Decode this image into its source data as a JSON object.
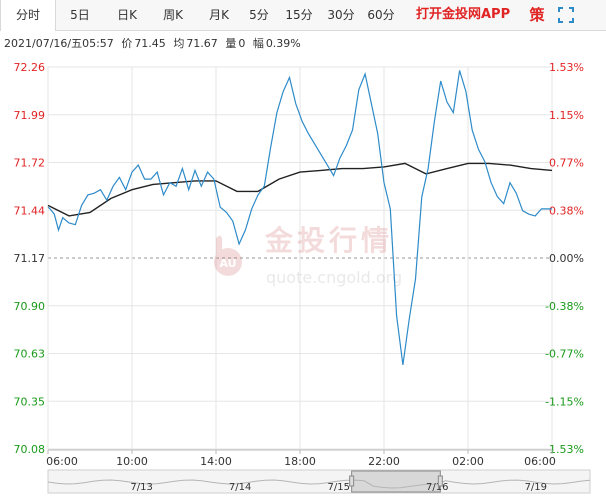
{
  "tabs": [
    {
      "label": "分时",
      "active": true
    },
    {
      "label": "5日"
    },
    {
      "label": "日K"
    },
    {
      "label": "周K"
    },
    {
      "label": "月K"
    },
    {
      "label": "5分"
    },
    {
      "label": "15分"
    },
    {
      "label": "30分"
    },
    {
      "label": "60分"
    }
  ],
  "app_link": "打开金投网APP",
  "icons": {
    "side": "策",
    "fullscreen": "fullscreen-icon"
  },
  "info": {
    "datetime": "2021/07/16/五05:57",
    "price_label": "价",
    "price": "71.45",
    "avg_label": "均",
    "avg": "71.67",
    "vol_label": "量",
    "vol": "0",
    "change_label": "幅",
    "change": "0.39%"
  },
  "watermark": {
    "cn": "金投行情",
    "url": "quote.cngold.org",
    "badge": "AU"
  },
  "colors": {
    "up": "#e02424",
    "down": "#1a9a1a",
    "price_line": "#2e8bc9",
    "avg_line": "#222222"
  },
  "navigator": {
    "dates": [
      "7/13",
      "7/14",
      "7/15",
      "7/16",
      "7/19"
    ],
    "selected": "7/16"
  },
  "chart_data": {
    "type": "line",
    "title": "",
    "xlabel": "",
    "ylabel": "",
    "x_ticks": [
      "06:00",
      "10:00",
      "14:00",
      "18:00",
      "22:00",
      "02:00",
      "06:00"
    ],
    "y_ticks": [
      "72.26",
      "71.99",
      "71.72",
      "71.44",
      "71.17",
      "70.90",
      "70.63",
      "70.35",
      "70.08"
    ],
    "pct_ticks": [
      "1.53%",
      "1.15%",
      "0.77%",
      "0.38%",
      "0.00%",
      "-0.38%",
      "-0.77%",
      "-1.15%",
      "-1.53%"
    ],
    "ylim": [
      70.08,
      72.26
    ],
    "prev_close": 71.17,
    "grid": true,
    "series": [
      {
        "name": "价",
        "hours": [
          0,
          0.1,
          0.3,
          0.5,
          0.7,
          1.0,
          1.3,
          1.6,
          1.9,
          2.2,
          2.5,
          2.8,
          3.1,
          3.4,
          3.7,
          4.0,
          4.3,
          4.6,
          4.9,
          5.2,
          5.5,
          5.8,
          6.1,
          6.4,
          6.7,
          7.0,
          7.3,
          7.6,
          7.9,
          8.2,
          8.5,
          8.8,
          9.1,
          9.4,
          9.7,
          10.0,
          10.3,
          10.6,
          10.9,
          11.2,
          11.5,
          11.8,
          12.1,
          12.4,
          12.7,
          13.0,
          13.3,
          13.6,
          13.9,
          14.2,
          14.5,
          14.8,
          15.1,
          15.4,
          15.7,
          16.0,
          16.3,
          16.6,
          16.9,
          17.2,
          17.5,
          17.8,
          18.1,
          18.4,
          18.7,
          19.0,
          19.3,
          19.6,
          19.9,
          20.2,
          20.5,
          20.8,
          21.1,
          21.4,
          21.7,
          22.0,
          22.3,
          22.6,
          22.9,
          23.2,
          23.5,
          23.8,
          24.0
        ],
        "values": [
          71.46,
          71.45,
          71.42,
          71.33,
          71.4,
          71.37,
          71.36,
          71.47,
          71.53,
          71.54,
          71.56,
          71.5,
          71.58,
          71.63,
          71.56,
          71.66,
          71.7,
          71.62,
          71.62,
          71.66,
          71.53,
          71.6,
          71.58,
          71.68,
          71.56,
          71.67,
          71.58,
          71.66,
          71.62,
          71.46,
          71.43,
          71.38,
          71.25,
          71.33,
          71.45,
          71.53,
          71.58,
          71.8,
          72.0,
          72.12,
          72.2,
          72.05,
          71.95,
          71.88,
          71.82,
          71.76,
          71.7,
          71.64,
          71.74,
          71.81,
          71.9,
          72.13,
          72.22,
          72.05,
          71.88,
          71.6,
          71.45,
          70.84,
          70.56,
          70.82,
          71.05,
          71.52,
          71.68,
          71.95,
          72.18,
          72.06,
          72.0,
          72.24,
          72.12,
          71.9,
          71.79,
          71.72,
          71.6,
          71.52,
          71.48,
          71.6,
          71.54,
          71.44,
          71.42,
          71.41,
          71.45,
          71.45,
          71.45
        ]
      },
      {
        "name": "均",
        "hours": [
          0,
          1,
          2,
          3,
          4,
          5,
          6,
          7,
          8,
          9,
          10,
          11,
          12,
          13,
          14,
          15,
          16,
          17,
          18,
          19,
          20,
          21,
          22,
          23,
          24
        ],
        "values": [
          71.47,
          71.41,
          71.43,
          71.51,
          71.56,
          71.59,
          71.6,
          71.61,
          71.61,
          71.55,
          71.55,
          71.62,
          71.66,
          71.67,
          71.68,
          71.68,
          71.69,
          71.71,
          71.65,
          71.68,
          71.71,
          71.71,
          71.7,
          71.68,
          71.67
        ]
      }
    ]
  }
}
